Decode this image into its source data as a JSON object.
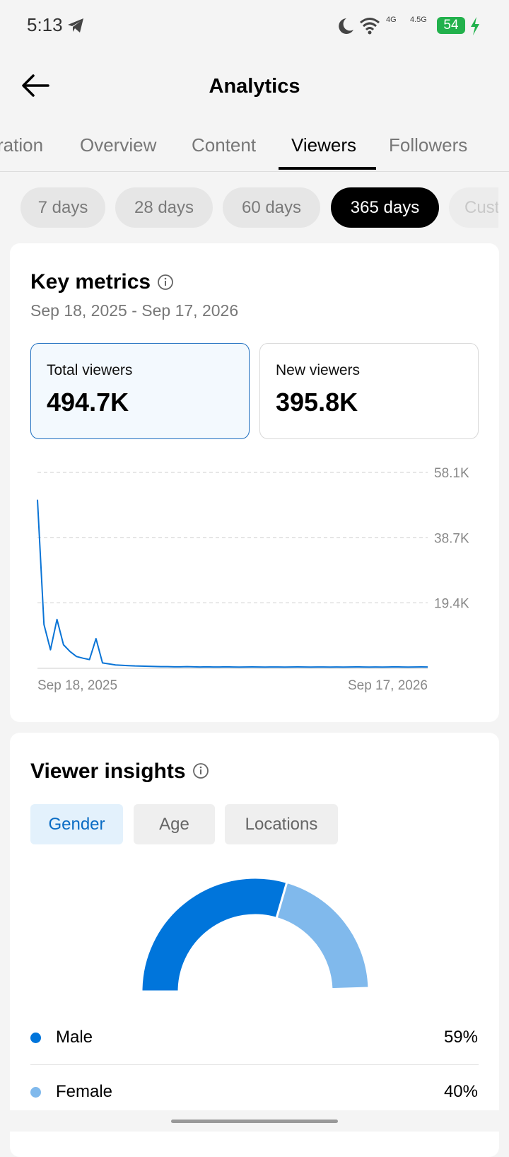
{
  "status_bar": {
    "time": "5:13",
    "network_1": "4G",
    "network_2": "4.5G",
    "battery": "54"
  },
  "header": {
    "title": "Analytics"
  },
  "tabs": [
    "ration",
    "Overview",
    "Content",
    "Viewers",
    "Followers"
  ],
  "periods": [
    "7 days",
    "28 days",
    "60 days",
    "365 days",
    "Custom"
  ],
  "key_metrics": {
    "title": "Key metrics",
    "date_range": "Sep 18, 2025 - Sep 17, 2026",
    "cards": [
      {
        "label": "Total viewers",
        "value": "494.7K"
      },
      {
        "label": "New viewers",
        "value": "395.8K"
      }
    ]
  },
  "viewer_insights": {
    "title": "Viewer insights",
    "filters": [
      "Gender",
      "Age",
      "Locations"
    ]
  },
  "chart_data": [
    {
      "type": "line",
      "categories": [
        "Sep 18, 2025",
        null,
        null,
        null,
        null,
        null,
        null,
        null,
        null,
        null,
        null,
        null,
        null,
        null,
        null,
        null,
        null,
        null,
        null,
        null,
        null,
        null,
        null,
        null,
        null,
        null,
        null,
        null,
        null,
        null,
        null,
        null,
        null,
        null,
        null,
        null,
        null,
        null,
        null,
        null,
        null,
        null,
        null,
        null,
        null,
        null,
        null,
        null,
        null,
        null,
        null,
        null,
        null,
        null,
        null,
        null,
        null,
        null,
        null,
        null,
        "Sep 17, 2026"
      ],
      "values": [
        50000,
        13000,
        5500,
        14500,
        7000,
        5000,
        3500,
        3000,
        2600,
        8800,
        1600,
        1300,
        1000,
        900,
        800,
        700,
        650,
        600,
        550,
        500,
        500,
        450,
        450,
        500,
        450,
        400,
        450,
        400,
        400,
        450,
        400,
        380,
        400,
        420,
        400,
        380,
        400,
        400,
        380,
        400,
        420,
        400,
        380,
        400,
        400,
        380,
        400,
        380,
        400,
        420,
        400,
        380,
        400,
        380,
        400,
        450,
        400,
        380,
        400,
        420,
        400
      ],
      "color": "#0a74d6",
      "ylim": [
        0,
        58100
      ],
      "yticks": [
        {
          "value": 19400,
          "label": "19.4K"
        },
        {
          "value": 38700,
          "label": "38.7K"
        },
        {
          "value": 58100,
          "label": "58.1K"
        }
      ],
      "grid": true
    },
    {
      "type": "pie",
      "categories": [
        "Male",
        "Female"
      ],
      "values": [
        59,
        40
      ],
      "value_labels": [
        "59%",
        "40%"
      ],
      "colors": [
        "#0075db",
        "#80b9ec"
      ]
    }
  ]
}
